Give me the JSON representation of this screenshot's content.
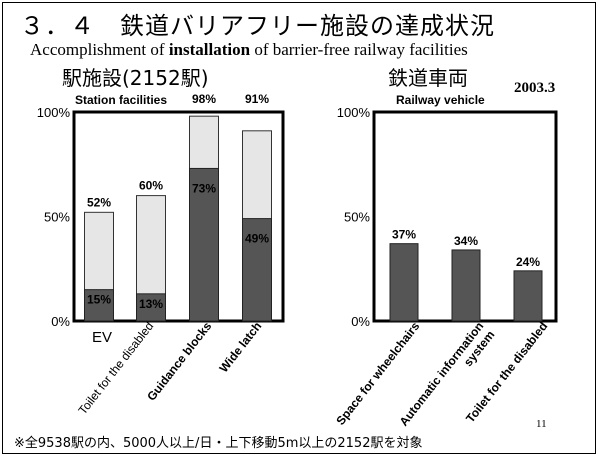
{
  "title": "３．４　鉄道バリアフリー施設の達成状況",
  "subtitle": {
    "part1": "Accomplishment of ",
    "bold": "installation",
    "part2": " of barrier-free railway facilities"
  },
  "left_heading": "駅施設(2152駅)",
  "right_heading": "鉄道車両",
  "date": "2003.3",
  "footnote": "※全9538駅の内、5000人以上/日・上下移動5m以上の2152駅を対象",
  "page_number": "11",
  "colors": {
    "light_fill": "#e6e6e6",
    "dark_fill": "#555555",
    "outline": "#000000"
  },
  "chart_data": [
    {
      "type": "bar",
      "title": "Station facilities",
      "categories": [
        "EV",
        "Toilet for the disabled",
        "Guidance blocks",
        "Wide latch"
      ],
      "series": [
        {
          "values": [
            52,
            60,
            98,
            91
          ]
        },
        {
          "values": [
            15,
            13,
            73,
            49
          ]
        }
      ],
      "value_labels_total": [
        "52%",
        "60%",
        "98%",
        "91%"
      ],
      "value_labels_inner": [
        "15%",
        "13%",
        "73%",
        "49%"
      ],
      "y_ticks": [
        "0%",
        "50%",
        "100%"
      ],
      "ylim": [
        0,
        100
      ],
      "grid": false
    },
    {
      "type": "bar",
      "title": "Railway vehicle",
      "categories": [
        "Space for wheelchairs",
        "Automatic information system",
        "Toilet for the disabled"
      ],
      "series": [
        {
          "values": [
            37,
            34,
            24
          ]
        }
      ],
      "value_labels": [
        "37%",
        "34%",
        "24%"
      ],
      "y_ticks": [
        "0%",
        "50%",
        "100%"
      ],
      "ylim": [
        0,
        100
      ],
      "grid": false
    }
  ]
}
